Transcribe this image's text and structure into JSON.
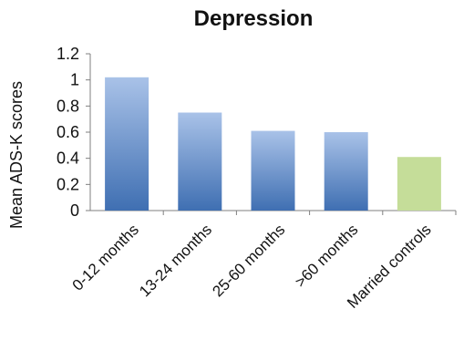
{
  "chart_data": {
    "type": "bar",
    "title": "Depression",
    "xlabel": "",
    "ylabel": "Mean ADS-K scores",
    "ylim": [
      0,
      1.2
    ],
    "yticks": [
      "0",
      "0.2",
      "0.4",
      "0.6",
      "0.8",
      "1",
      "1.2"
    ],
    "categories": [
      "0-12 months",
      "13-24 months",
      "25-60 months",
      ">60 months",
      "Married controls"
    ],
    "values": [
      1.02,
      0.75,
      0.61,
      0.6,
      0.41
    ],
    "colors": {
      "bar_gradient_top": "#a9c2e8",
      "bar_gradient_bottom": "#3f6fb2",
      "control_bar": "#c5dd99"
    },
    "grid": false,
    "legend": "none"
  }
}
